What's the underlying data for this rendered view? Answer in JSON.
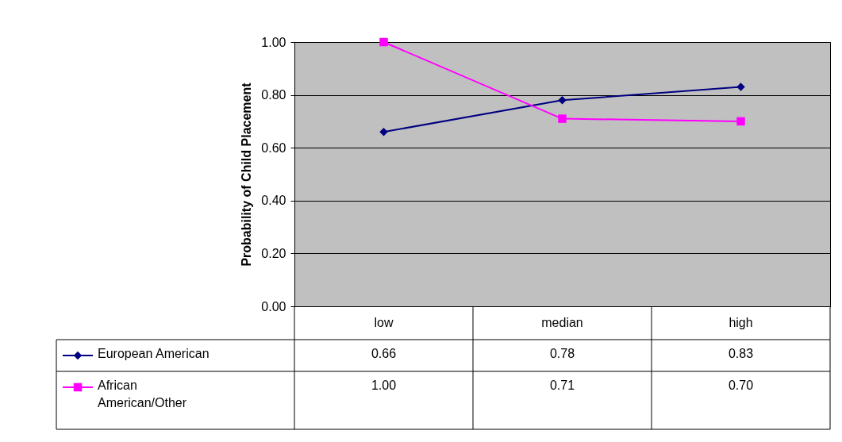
{
  "chart_data": {
    "type": "line",
    "ylabel": "Probability of Child Placement",
    "categories": [
      "low",
      "median",
      "high"
    ],
    "series": [
      {
        "name": "European American",
        "color": "#000080",
        "marker": "diamond",
        "values": [
          0.66,
          0.78,
          0.83
        ],
        "value_labels": [
          "0.66",
          "0.78",
          "0.83"
        ]
      },
      {
        "name": "African American/Other",
        "color": "#ff00ff",
        "marker": "square",
        "values": [
          1.0,
          0.71,
          0.7
        ],
        "value_labels": [
          "1.00",
          "0.71",
          "0.70"
        ]
      }
    ],
    "ylim": [
      0,
      1
    ],
    "yticks": [
      {
        "value": 0,
        "label": "0.00"
      },
      {
        "value": 0.2,
        "label": "0.20"
      },
      {
        "value": 0.4,
        "label": "0.40"
      },
      {
        "value": 0.6,
        "label": "0.60"
      },
      {
        "value": 0.8,
        "label": "0.80"
      },
      {
        "value": 1,
        "label": "1.00"
      }
    ],
    "grid": "y",
    "legend": "bottom",
    "line_style": "solid"
  }
}
